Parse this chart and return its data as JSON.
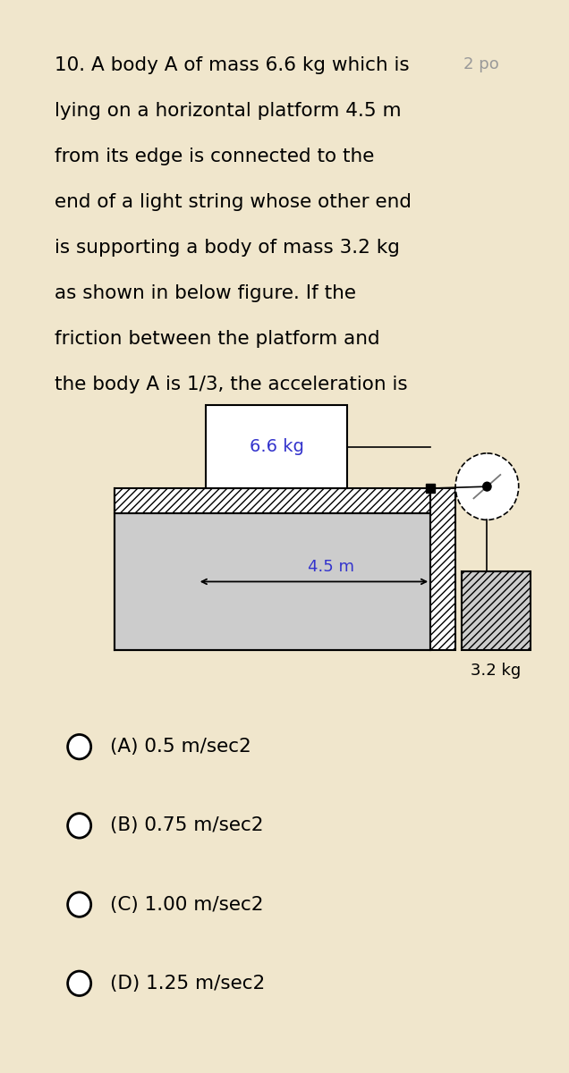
{
  "bg_color": "#f0e6cc",
  "card_color": "#ffffff",
  "question_text_lines": [
    "10. A body A of mass 6.6 kg which is",
    "lying on a horizontal platform 4.5 m",
    "from its edge is connected to the",
    "end of a light string whose other end",
    "is supporting a body of mass 3.2 kg",
    "as shown in below figure. If the",
    "friction between the platform and",
    "the body A is 1/3, the acceleration is"
  ],
  "side_text": "2 po",
  "mass_A_label": "6.6 kg",
  "distance_label": "4.5 m",
  "mass_B_label": "3.2 kg",
  "options": [
    "(A) 0.5 m/sec2",
    "(B) 0.75 m/sec2",
    "(C) 1.00 m/sec2",
    "(D) 1.25 m/sec2"
  ],
  "platform_gray": "#cccccc",
  "text_color": "#000000",
  "label_blue": "#3333cc",
  "gray_text": "#999999"
}
